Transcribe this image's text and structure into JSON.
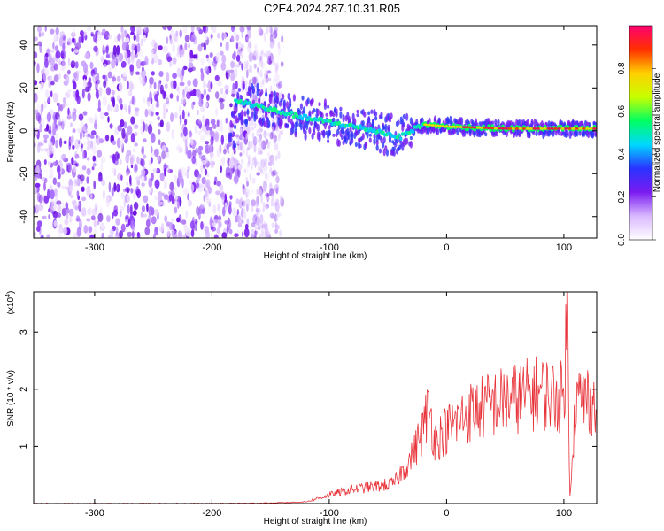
{
  "title": "C2E4.2024.287.10.31.R05",
  "chart_data": [
    {
      "type": "heatmap",
      "xlabel": "Height of straight line (km)",
      "ylabel": "Frequency (Hz)",
      "xlim": [
        -352,
        128
      ],
      "ylim": [
        -50,
        49
      ],
      "x_ticks": [
        -300,
        -200,
        -100,
        0,
        100
      ],
      "y_ticks": [
        -40,
        -20,
        0,
        20,
        40
      ],
      "colorbar": {
        "label": "Normalized spectral amplitude",
        "range": [
          0,
          1
        ],
        "ticks": [
          0.0,
          0.2,
          0.4,
          0.6,
          0.8
        ],
        "colors": [
          "#ffffff",
          "#d9b8ff",
          "#7a1cf0",
          "#2a33ff",
          "#00d8ff",
          "#00ff60",
          "#c8ff00",
          "#ffd000",
          "#ff3000",
          "#ff0070"
        ]
      },
      "noise_region_x": [
        -352,
        -140
      ],
      "signal_trace": [
        {
          "x": -180,
          "y": 14
        },
        {
          "x": -150,
          "y": 10
        },
        {
          "x": -120,
          "y": 6
        },
        {
          "x": -90,
          "y": 3
        },
        {
          "x": -60,
          "y": 0
        },
        {
          "x": -40,
          "y": -3
        },
        {
          "x": -30,
          "y": 0
        },
        {
          "x": -20,
          "y": 3
        },
        {
          "x": 0,
          "y": 2
        },
        {
          "x": 50,
          "y": 1
        },
        {
          "x": 100,
          "y": 1
        },
        {
          "x": 128,
          "y": 1
        }
      ],
      "grid": false
    },
    {
      "type": "line",
      "xlabel": "Height of straight line (km)",
      "ylabel": "SNR (10 * v/v)",
      "y_multiplier": "(x10",
      "y_multiplier_exp": "4",
      "y_multiplier_close": ")",
      "xlim": [
        -352,
        128
      ],
      "ylim": [
        0,
        3.7
      ],
      "x_ticks": [
        -300,
        -200,
        -100,
        0,
        100
      ],
      "y_ticks": [
        1,
        2,
        3
      ],
      "color": "#e8333a",
      "series": [
        {
          "x": [
            -352,
            -300,
            -250,
            -200,
            -150,
            -120,
            -100,
            -80,
            -60,
            -45,
            -40,
            -30,
            -20,
            -15,
            -10,
            0,
            10,
            20,
            40,
            50,
            60,
            70,
            80,
            90,
            100,
            103,
            105,
            110,
            120,
            128
          ],
          "values": [
            0.0,
            0.0,
            0.0,
            0.0,
            0.01,
            0.03,
            0.15,
            0.25,
            0.3,
            0.35,
            0.5,
            0.8,
            1.3,
            1.7,
            1.1,
            1.3,
            1.45,
            1.6,
            1.75,
            1.8,
            1.85,
            1.9,
            1.95,
            1.9,
            1.85,
            3.6,
            0.1,
            1.8,
            1.85,
            1.7
          ]
        }
      ],
      "grid": false
    }
  ]
}
